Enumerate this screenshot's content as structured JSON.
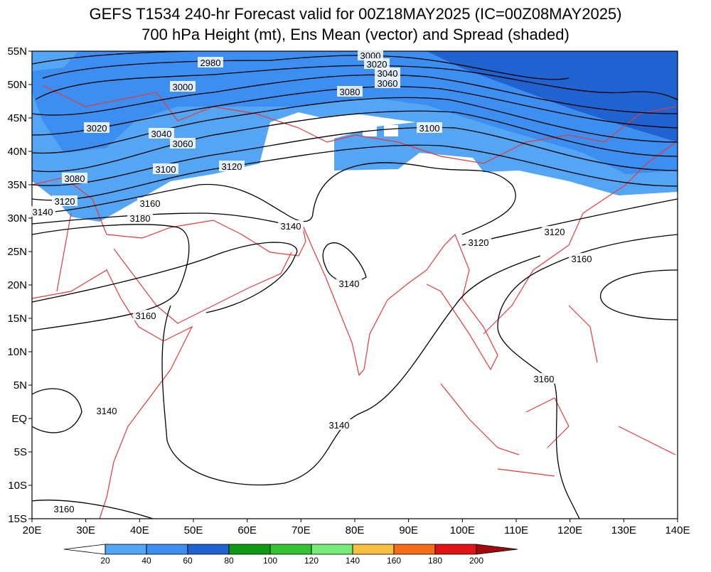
{
  "header": {
    "title_line1": "GEFS T1534 240-hr Forecast valid for 00Z18MAY2025 (IC=00Z08MAY2025)",
    "title_line2": "700 hPa Height (mt), Ens Mean (vector) and Spread (shaded)"
  },
  "map": {
    "lat_labels": [
      "55N",
      "50N",
      "45N",
      "40N",
      "35N",
      "30N",
      "25N",
      "20N",
      "15N",
      "10N",
      "5N",
      "EQ",
      "5S",
      "10S",
      "15S"
    ],
    "lon_labels": [
      "20E",
      "30E",
      "40E",
      "50E",
      "60E",
      "70E",
      "80E",
      "90E",
      "100E",
      "110E",
      "120E",
      "130E",
      "140E"
    ],
    "contour_labels": [
      "2980",
      "3000",
      "3020",
      "3040",
      "3060",
      "3080",
      "3100",
      "3000",
      "3020",
      "3040",
      "3060",
      "3080",
      "3100",
      "3120",
      "3120",
      "3140",
      "3160",
      "3180",
      "3140",
      "3140",
      "3120",
      "3120",
      "3160",
      "3160",
      "3140",
      "3160",
      "3140",
      "3160"
    ]
  },
  "colorbar": {
    "ticks": [
      20,
      40,
      60,
      80,
      100,
      120,
      140,
      160,
      180,
      200
    ],
    "colors": [
      "#ffffff",
      "#55a5f5",
      "#3c8ef0",
      "#1f62d0",
      "#0f9a14",
      "#32c232",
      "#78ec78",
      "#f8c040",
      "#f86c18",
      "#e01414",
      "#a00a0a"
    ]
  }
}
